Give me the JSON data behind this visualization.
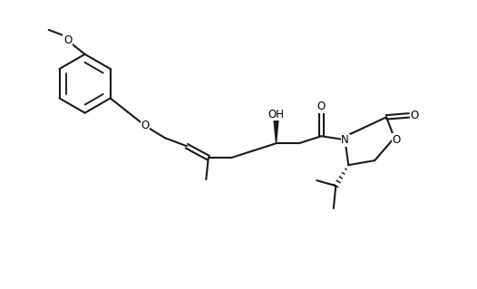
{
  "background_color": "#ffffff",
  "line_color": "#1a1a1a",
  "line_width": 1.5,
  "font_size": 8.5,
  "figsize": [
    5.26,
    3.19
  ],
  "dpi": 100,
  "xlim": [
    0.0,
    10.5
  ],
  "ylim": [
    1.5,
    7.5
  ]
}
